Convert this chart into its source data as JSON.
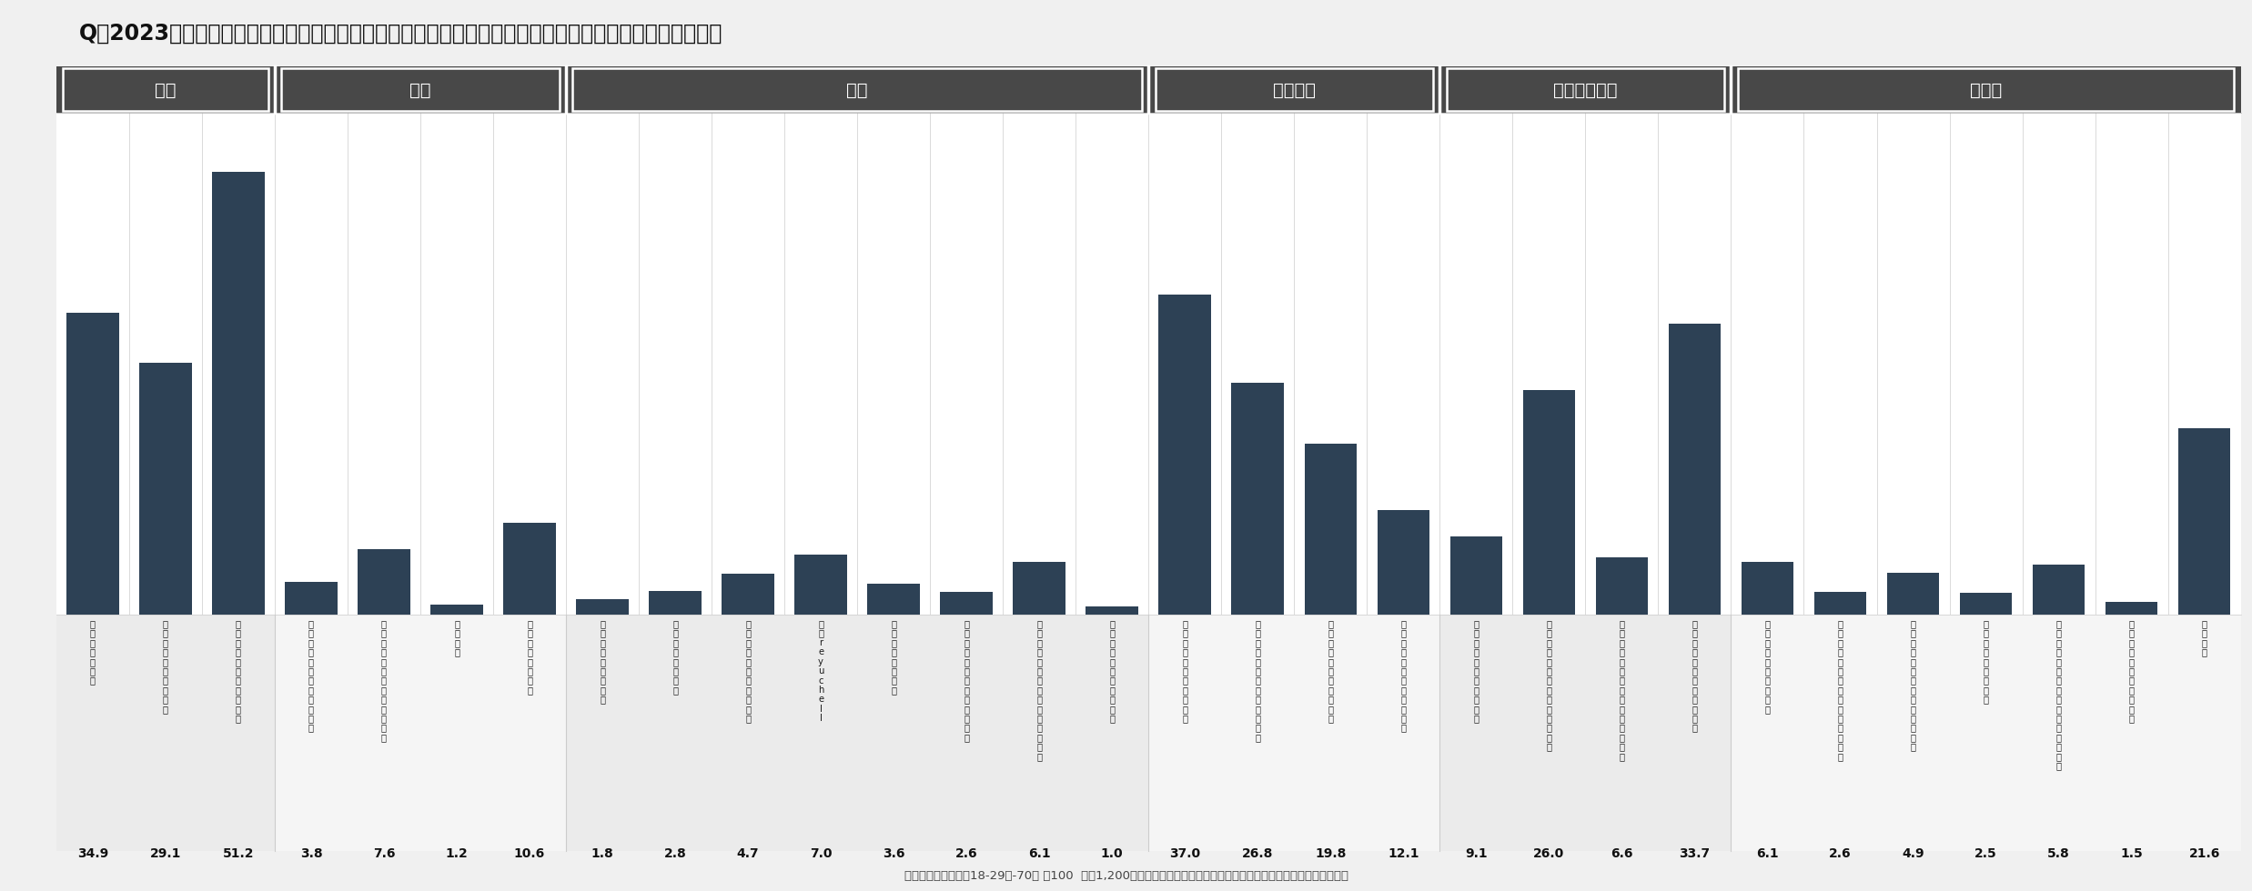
{
  "title": "Q．2023年にあなたの不安を強めたと感じる出来事は何ですか。あてはまるものを全てお選びください。",
  "values": [
    34.9,
    29.1,
    51.2,
    3.8,
    7.6,
    1.2,
    10.6,
    1.8,
    2.8,
    4.7,
    7.0,
    3.6,
    2.6,
    6.1,
    1.0,
    37.0,
    26.8,
    19.8,
    12.1,
    9.1,
    26.0,
    6.6,
    33.7,
    6.1,
    2.6,
    4.9,
    2.5,
    5.8,
    1.5,
    21.6
  ],
  "label_lines": [
    [
      "電",
      "気",
      "料",
      "金",
      "値",
      "上",
      "げ"
    ],
    [
      "ガ",
      "ソ",
      "リ",
      "ン",
      "価",
      "格",
      "過",
      "去",
      "最",
      "高"
    ],
    [
      "値",
      "上",
      "げ",
      "ラ",
      "ッ",
      "シ",
      "ュ",
      "・",
      "物",
      "価",
      "高"
    ],
    [
      "Ｌ",
      "Ｇ",
      "Ｂ",
      "Ｔ",
      "理",
      "解",
      "増",
      "進",
      "法",
      "が",
      "成",
      "立"
    ],
    [
      "消",
      "費",
      "税",
      "の",
      "イ",
      "ン",
      "ボ",
      "イ",
      "ス",
      "制",
      "度",
      "開",
      "始"
    ],
    [
      "氏",
      "創",
      "死",
      "去"
    ],
    [
      "自",
      "民",
      "党",
      "の",
      "裏",
      "金",
      "問",
      "題"
    ],
    [
      "瓶",
      "さ",
      "ん",
      "死",
      "去",
      "タ",
      "レ",
      "ン",
      "ト"
    ],
    [
      "落",
      "語",
      "家",
      "笑",
      "福",
      "亭",
      "笑",
      "笑"
    ],
    [
      "音",
      "楽",
      "家",
      "坂",
      "本",
      "龍",
      "一",
      "さ",
      "ん",
      "死",
      "去"
    ],
    [
      "さ",
      "ん",
      "r",
      "e",
      "y",
      "u",
      "c",
      "h",
      "e",
      "l",
      "l"
    ],
    [
      "宝",
      "塚",
      "歌",
      "劇",
      "団",
      "員",
      "が",
      "死"
    ],
    [
      "著",
      "名",
      "人",
      "歌",
      "を",
      "舞",
      "劇",
      "優",
      "市",
      "川",
      "猿",
      "之",
      "助"
    ],
    [
      "ジ",
      "ャ",
      "ニ",
      "ー",
      "ズ",
      "事",
      "務",
      "所",
      "の",
      "性",
      "加",
      "害",
      "問",
      "疑",
      "惑"
    ],
    [
      "疑",
      "俳",
      "優",
      "遥",
      "永",
      "の",
      "大",
      "麻",
      "所",
      "持",
      "容"
    ],
    [
      "ロ",
      "シ",
      "ア",
      "・",
      "ウ",
      "ク",
      "ラ",
      "イ",
      "ナ",
      "情",
      "勢"
    ],
    [
      "イ",
      "ス",
      "ラ",
      "エ",
      "ル",
      "・",
      "パ",
      "レ",
      "ス",
      "チ",
      "ナ",
      "情",
      "勢"
    ],
    [
      "軍",
      "事",
      "行",
      "動",
      "・",
      "ミ",
      "サ",
      "イ",
      "ル",
      "発",
      "射"
    ],
    [
      "北",
      "朝",
      "鮮",
      "ロ",
      "ケ",
      "ッ",
      "ト",
      "な",
      "ど",
      "の",
      "発",
      "射"
    ],
    [
      "新",
      "型",
      "コ",
      "ロ",
      "ナ",
      "５",
      "類",
      "引",
      "き",
      "下",
      "げ"
    ],
    [
      "最",
      "各",
      "地",
      "で",
      "ク",
      "マ",
      "な",
      "ど",
      "の",
      "猛",
      "暑",
      "・",
      "大",
      "雨"
    ],
    [
      "記",
      "録",
      "的",
      "な",
      "猛",
      "暑",
      "・",
      "被",
      "害",
      "、",
      "死",
      "傷",
      "者",
      "過",
      "去"
    ],
    [
      "福",
      "島",
      "第",
      "一",
      "原",
      "発",
      "処",
      "理",
      "水",
      "、",
      "放",
      "出"
    ],
    [
      "列",
      "島",
      "各",
      "地",
      "Ａ",
      "Ｉ",
      "急",
      "速",
      "普",
      "及"
    ],
    [
      "生",
      "成",
      "Ａ",
      "Ｉ",
      "訓",
      "練",
      "中",
      "銃",
      "撃",
      "、",
      "候",
      "補",
      "生",
      "を",
      "遂"
    ],
    [
      "捕",
      "陸",
      "自",
      "ビ",
      "ッ",
      "グ",
      "モ",
      "ー",
      "タ",
      "ー",
      "不",
      "正",
      "請",
      "求"
    ],
    [
      "ビ",
      "ッ",
      "グ",
      "モ",
      "ー",
      "タ",
      "ー",
      "不",
      "正"
    ],
    [
      "で",
      "日",
      "達",
      "大",
      "ア",
      "メ",
      "フ",
      "ト",
      "部",
      "員",
      "、",
      "逮",
      "違",
      "法",
      "薬",
      "物"
    ],
    [
      "問",
      "ダ",
      "イ",
      "ハ",
      "ツ",
      "認",
      "証",
      "試",
      "験",
      "不",
      "正"
    ],
    [
      "特",
      "に",
      "な",
      "い"
    ]
  ],
  "categories": [
    {
      "name": "物価",
      "start": 0,
      "end": 3
    },
    {
      "name": "政治",
      "start": 3,
      "end": 7
    },
    {
      "name": "芸能",
      "start": 7,
      "end": 15
    },
    {
      "name": "世界情勢",
      "start": 15,
      "end": 19
    },
    {
      "name": "気候・感染症",
      "start": 19,
      "end": 23
    },
    {
      "name": "その他",
      "start": 23,
      "end": 30
    }
  ],
  "bar_color": "#2d4155",
  "category_header_color": "#484848",
  "category_header_text_color": "#ffffff",
  "bg_color": "#f0f0f0",
  "chart_bg_color": "#ffffff",
  "label_bg_even": "#ebebeb",
  "label_bg_odd": "#f5f5f5",
  "footnote": "（サンプル数：男女18-29歳-70代 各100  合計1,200／性年代の人口構成比に合わせてウェイトバック集計、単位は％）"
}
